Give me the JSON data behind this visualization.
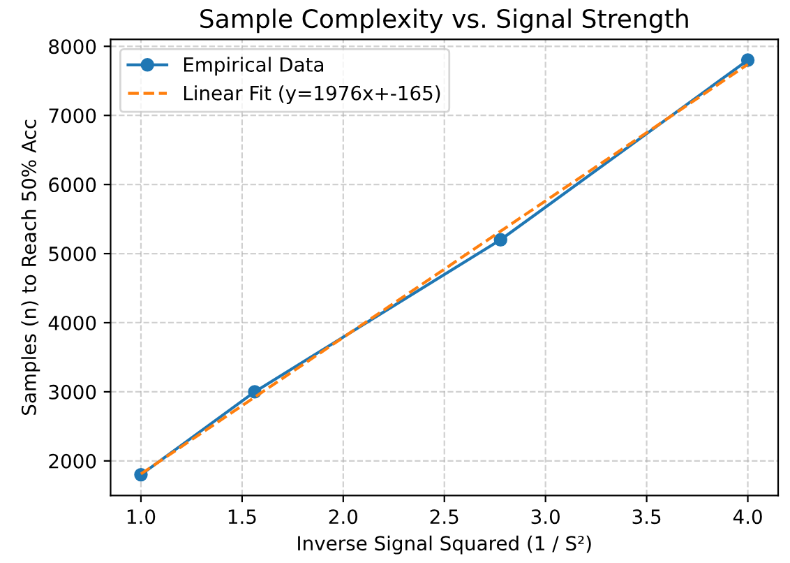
{
  "chart_data": {
    "type": "line",
    "title": "Sample Complexity vs. Signal Strength",
    "xlabel": "Inverse Signal Squared (1 / S²)",
    "ylabel": "Samples (n) to Reach 50% Acc",
    "series": [
      {
        "name": "Empirical Data",
        "color": "#1f77b4",
        "x": [
          1.0,
          1.5625,
          2.7778,
          4.0
        ],
        "values": [
          1800,
          3000,
          5200,
          7800
        ],
        "marker": "circle",
        "line_style": "solid"
      },
      {
        "name": "Linear Fit (y=1976x+-165)",
        "color": "#ff7f0e",
        "x": [
          1.0,
          4.0
        ],
        "values": [
          1811,
          7739
        ],
        "marker": "none",
        "line_style": "dashed"
      }
    ],
    "xlim": [
      0.85,
      4.15
    ],
    "xticks": [
      {
        "value": 1.0,
        "label": "1.0"
      },
      {
        "value": 1.5,
        "label": "1.5"
      },
      {
        "value": 2.0,
        "label": "2.0"
      },
      {
        "value": 2.5,
        "label": "2.5"
      },
      {
        "value": 3.0,
        "label": "3.0"
      },
      {
        "value": 3.5,
        "label": "3.5"
      },
      {
        "value": 4.0,
        "label": "4.0"
      }
    ],
    "ylim": [
      1500,
      8100
    ],
    "yticks": [
      2000,
      3000,
      4000,
      5000,
      6000,
      7000,
      8000
    ],
    "grid": true,
    "legend": "top left"
  }
}
